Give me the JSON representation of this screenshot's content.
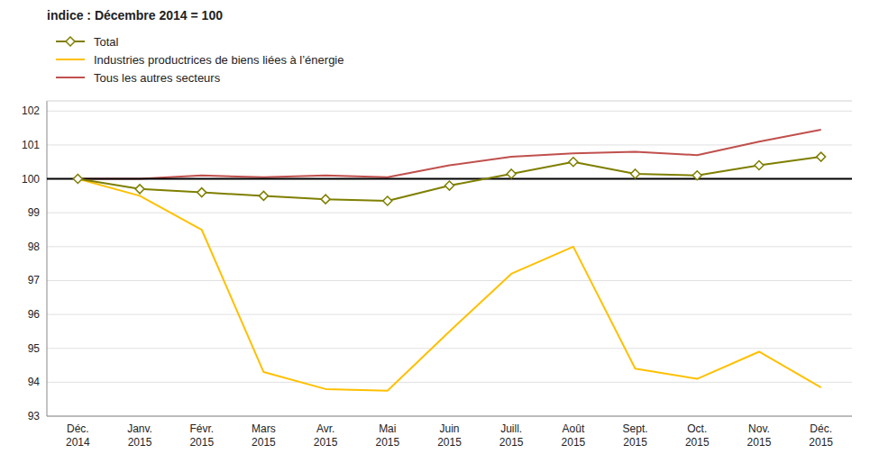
{
  "chart_data": {
    "type": "line",
    "title": "indice : Décembre 2014 = 100",
    "categories": [
      "Déc.\n2014",
      "Janv.\n2015",
      "Févr.\n2015",
      "Mars\n2015",
      "Avr.\n2015",
      "Mai\n2015",
      "Juin\n2015",
      "Juill.\n2015",
      "Août\n2015",
      "Sept.\n2015",
      "Oct.\n2015",
      "Nov.\n2015",
      "Déc.\n2015"
    ],
    "series": [
      {
        "name": "Total",
        "color": "#7f7f00",
        "marker": "diamond",
        "values": [
          100.0,
          99.7,
          99.6,
          99.5,
          99.4,
          99.35,
          99.8,
          100.15,
          100.5,
          100.15,
          100.1,
          100.4,
          100.65
        ]
      },
      {
        "name": "Industries productrices de biens liées à l’énergie",
        "color": "#FFC000",
        "values": [
          100.0,
          99.5,
          98.5,
          94.3,
          93.8,
          93.75,
          95.5,
          97.2,
          98.0,
          94.4,
          94.1,
          94.9,
          93.85
        ]
      },
      {
        "name": "Tous les autres secteurs",
        "color": "#C0504D",
        "values": [
          100.0,
          100.0,
          100.1,
          100.05,
          100.1,
          100.05,
          100.4,
          100.65,
          100.75,
          100.8,
          100.7,
          101.1,
          101.45
        ]
      }
    ],
    "reference_line": {
      "value": 100.0,
      "color": "#000000"
    },
    "ylim": [
      93,
      102.3
    ],
    "yticks": [
      93,
      94,
      95,
      96,
      97,
      98,
      99,
      100,
      101,
      102
    ],
    "grid": true
  }
}
